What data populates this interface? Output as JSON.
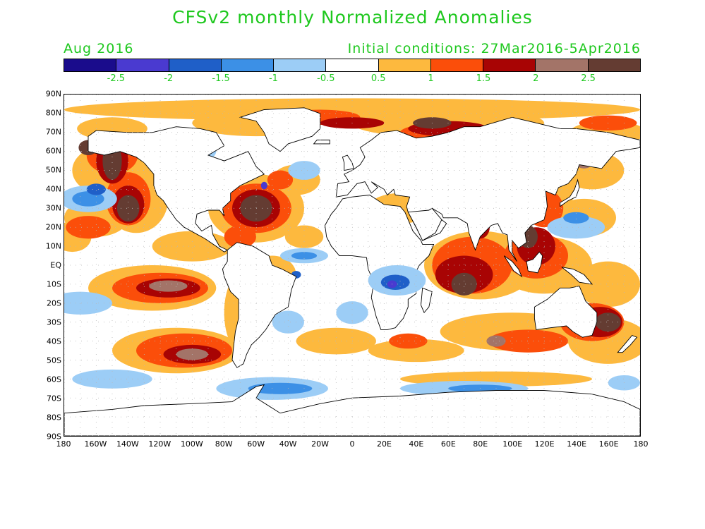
{
  "header": {
    "title": "CFSv2 monthly Normalized Anomalies",
    "period": "Aug 2016",
    "initial_conditions": "Initial conditions: 27Mar2016-5Apr2016"
  },
  "colorbar": {
    "colors": [
      "#1a0c8c",
      "#4a3ad0",
      "#1f5fc8",
      "#3c90e6",
      "#9ccdf6",
      "#ffffff",
      "#fdb93e",
      "#fb4e0a",
      "#a80404",
      "#a37468",
      "#643c32"
    ],
    "labels": [
      "-2.5",
      "-2",
      "-1.5",
      "-1",
      "-0.5",
      "0.5",
      "1",
      "1.5",
      "2",
      "2.5"
    ]
  },
  "axes": {
    "lat_labels": [
      "90N",
      "80N",
      "70N",
      "60N",
      "50N",
      "40N",
      "30N",
      "20N",
      "10N",
      "EQ",
      "10S",
      "20S",
      "30S",
      "40S",
      "50S",
      "60S",
      "70S",
      "80S",
      "90S"
    ],
    "lon_labels": [
      "180",
      "160W",
      "140W",
      "120W",
      "100W",
      "80W",
      "60W",
      "40W",
      "20W",
      "0",
      "20E",
      "40E",
      "60E",
      "80E",
      "100E",
      "120E",
      "140E",
      "160E",
      "180"
    ]
  },
  "map": {
    "land_color": "#ffffff",
    "coastline_color": "#000000",
    "dot_grid": true
  }
}
